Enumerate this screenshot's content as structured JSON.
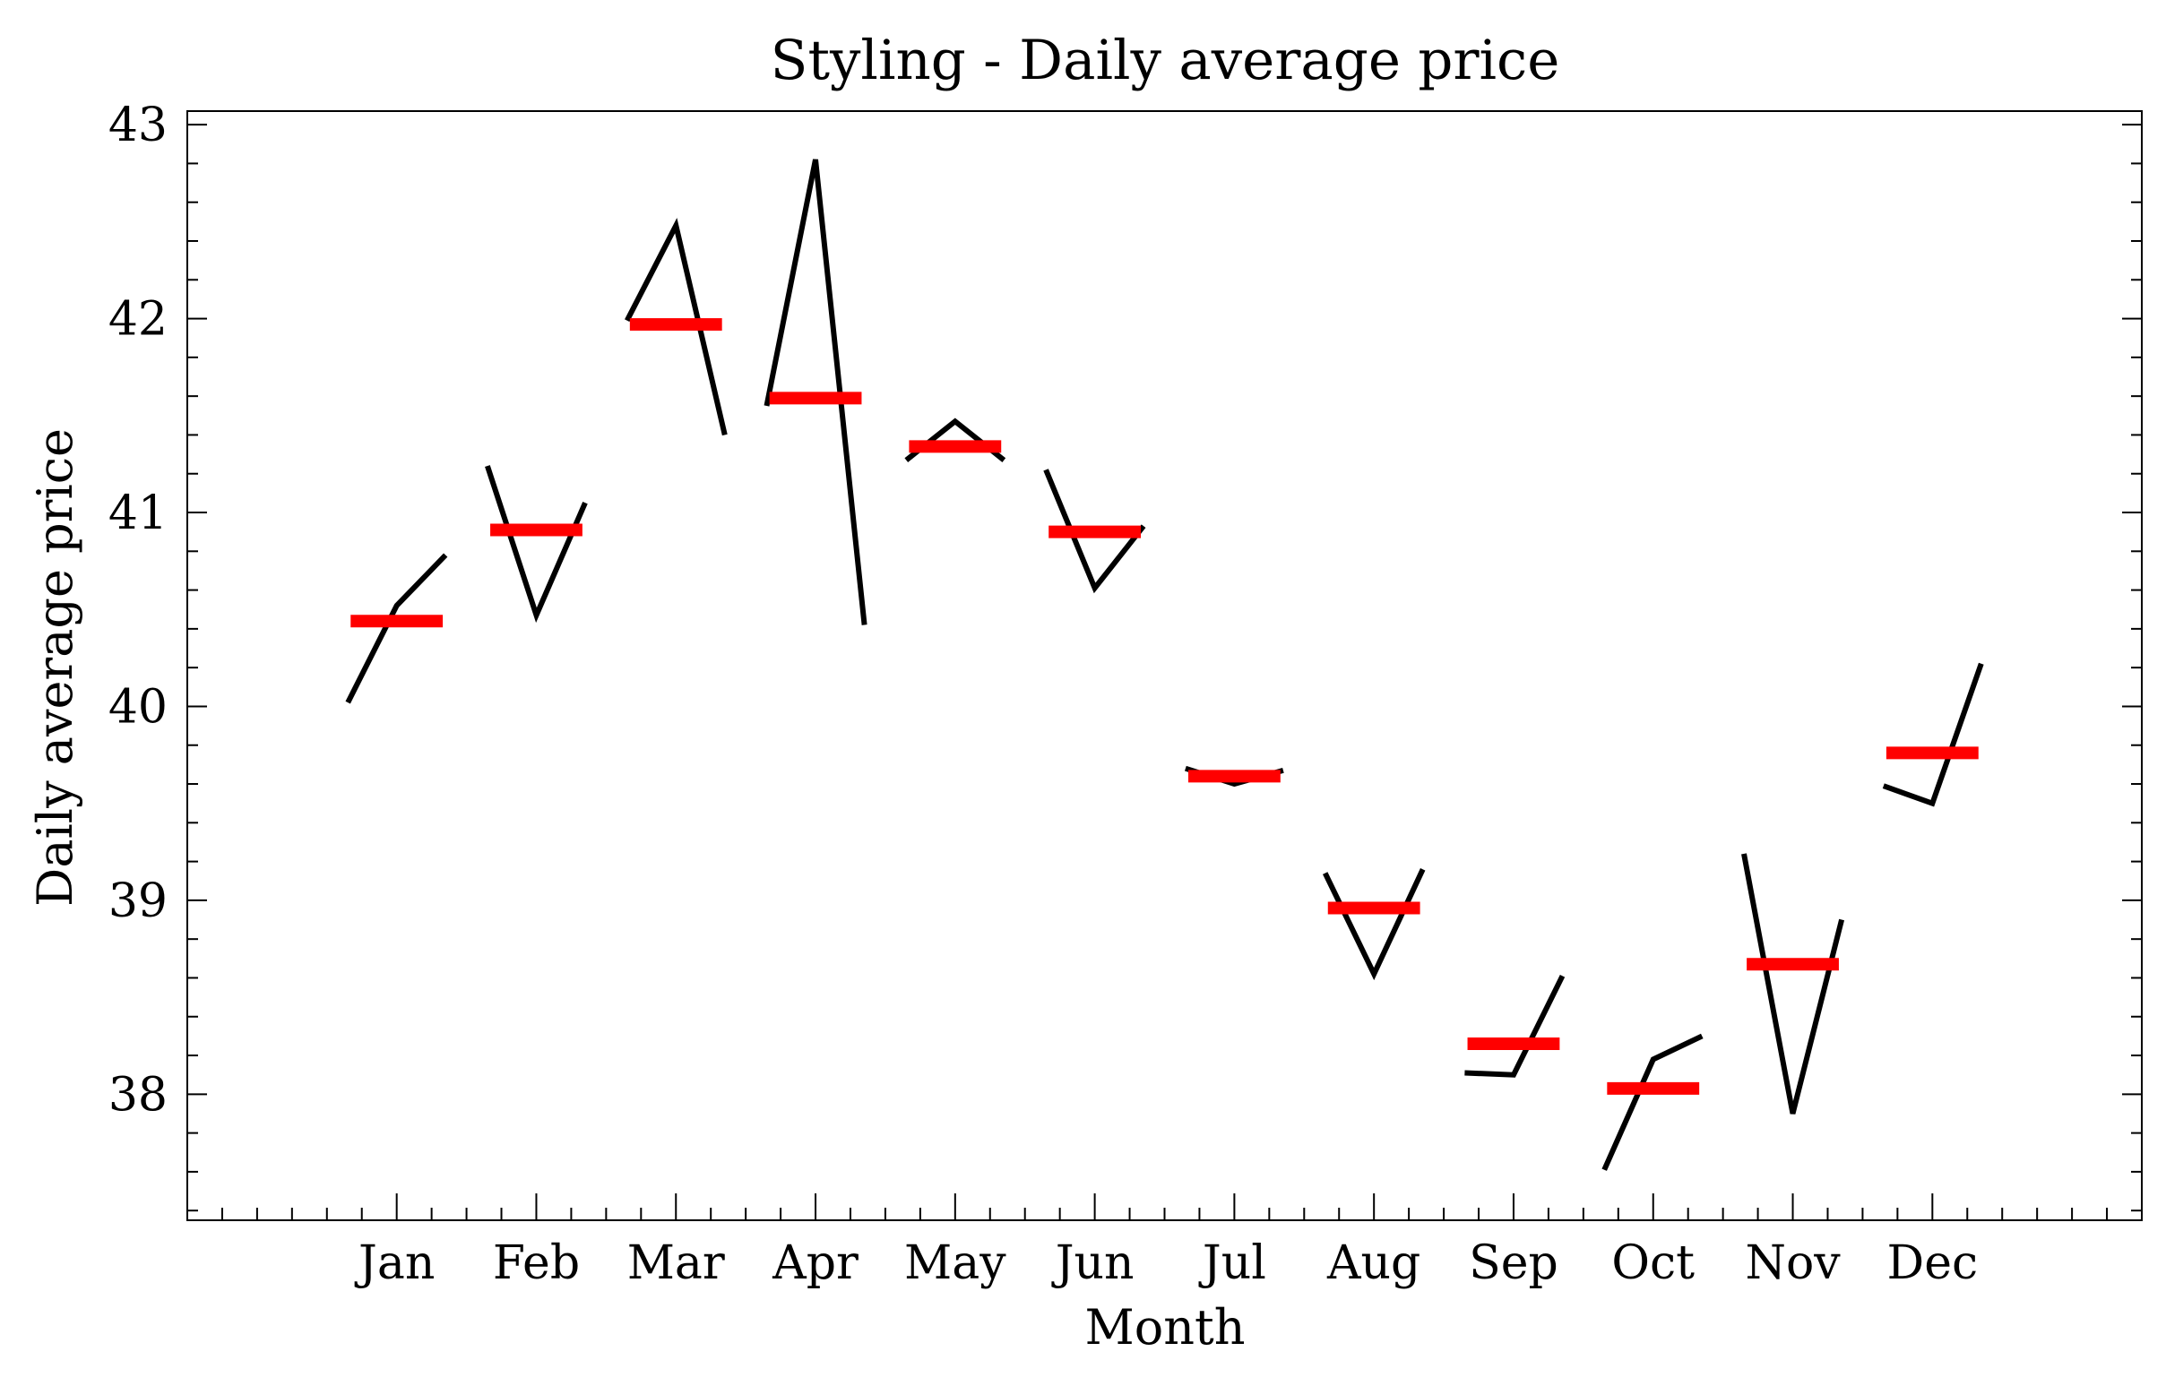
{
  "chart_data": {
    "type": "line",
    "title": "Styling - Daily average price",
    "xlabel": "Month",
    "ylabel": "Daily average price",
    "categories": [
      "Jan",
      "Feb",
      "Mar",
      "Apr",
      "May",
      "Jun",
      "Jul",
      "Aug",
      "Sep",
      "Oct",
      "Nov",
      "Dec"
    ],
    "yticks": [
      "38",
      "39",
      "40",
      "41",
      "42",
      "43"
    ],
    "ylim": [
      37.35,
      43.07
    ],
    "grid": false,
    "legend": "none",
    "series": [
      {
        "kind": "daily-line",
        "color": "#000000",
        "values": [
          [
            40.02,
            40.52,
            40.78
          ],
          [
            41.24,
            40.47,
            41.05
          ],
          [
            41.99,
            42.48,
            41.4
          ],
          [
            41.55,
            42.82,
            40.42
          ],
          [
            41.27,
            41.47,
            41.27
          ],
          [
            41.22,
            40.61,
            40.93
          ],
          [
            39.68,
            39.6,
            39.67
          ],
          [
            39.14,
            38.62,
            39.16
          ],
          [
            38.11,
            38.1,
            38.61
          ],
          [
            37.61,
            38.18,
            38.3
          ],
          [
            39.24,
            37.9,
            38.9
          ],
          [
            39.59,
            39.5,
            40.22
          ]
        ]
      },
      {
        "kind": "monthly-average",
        "color": "#ff0000",
        "values": [
          40.44,
          40.91,
          41.97,
          41.59,
          41.34,
          40.9,
          39.64,
          38.96,
          38.26,
          38.03,
          38.67,
          39.76
        ]
      }
    ]
  }
}
